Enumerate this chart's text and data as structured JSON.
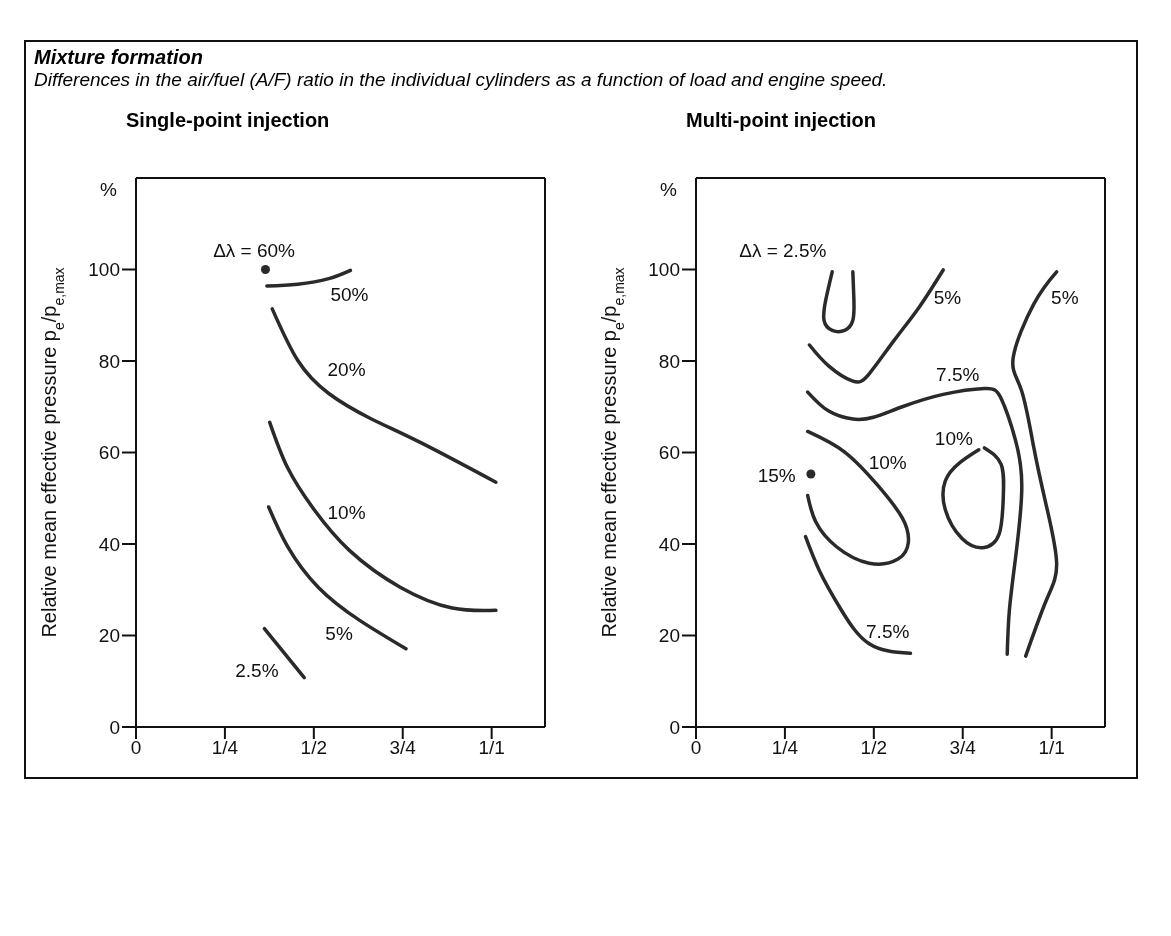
{
  "chart_data": [
    {
      "type": "other",
      "title": "Mixture formation",
      "subtitle": "Differences in the air/fuel (A/F) ratio in the individual cylinders as a function of load and engine speed."
    },
    {
      "type": "line",
      "title": "Single-point injection",
      "ylabel": "Relative mean effective pressure p$_{e}$/p$_{e,max}$",
      "xlim": [
        0,
        1.15
      ],
      "ylim": [
        0,
        120
      ],
      "xticks": [
        0,
        {
          "value": 0.25,
          "label": "1/4"
        },
        {
          "value": 0.5,
          "label": "1/2"
        },
        {
          "value": 0.75,
          "label": "3/4"
        },
        {
          "value": 1,
          "label": "1/1"
        }
      ],
      "yticks": [
        0,
        20,
        40,
        60,
        80,
        100
      ],
      "marker": "none",
      "series": [
        {
          "name": "50%",
          "color": "#2a2a2a",
          "x": [
            0.368,
            0.455,
            0.542,
            0.603
          ],
          "values": [
            96.4,
            96.8,
            98.0,
            99.8
          ]
        },
        {
          "name": "20%",
          "color": "#2a2a2a",
          "x": [
            0.383,
            0.455,
            0.542,
            0.658,
            0.802,
            1.012
          ],
          "values": [
            91.4,
            80.1,
            72.9,
            67.5,
            62.1,
            53.5
          ]
        },
        {
          "name": "10%",
          "color": "#2a2a2a",
          "x": [
            0.376,
            0.426,
            0.499,
            0.6,
            0.744,
            0.889,
            1.012
          ],
          "values": [
            66.6,
            56.7,
            47.7,
            38.6,
            30.5,
            26.0,
            25.5
          ]
        },
        {
          "name": "5%",
          "color": "#2a2a2a",
          "x": [
            0.373,
            0.426,
            0.513,
            0.629,
            0.759
          ],
          "values": [
            48.1,
            39.5,
            30.5,
            23.3,
            17.1
          ]
        },
        {
          "name": "2.5%",
          "color": "#2a2a2a",
          "x": [
            0.361,
            0.473
          ],
          "values": [
            21.5,
            10.8
          ]
        },
        {
          "name": "Δλ = 60%",
          "type": "scatter",
          "marker": "circle",
          "color": "#2a2a2a",
          "x": [
            0.364
          ],
          "values": [
            100
          ]
        }
      ],
      "annotations": [
        "%"
      ]
    },
    {
      "type": "line",
      "title": "Multi-point injection",
      "ylabel": "Relative mean effective pressure p$_{e}$/p$_{e,max}$",
      "xlim": [
        0,
        1.15
      ],
      "ylim": [
        0,
        120
      ],
      "xticks": [
        0,
        {
          "value": 0.25,
          "label": "1/4"
        },
        {
          "value": 0.5,
          "label": "1/2"
        },
        {
          "value": 0.75,
          "label": "3/4"
        },
        {
          "value": 1,
          "label": "1/1"
        }
      ],
      "yticks": [
        0,
        20,
        40,
        60,
        80,
        100
      ],
      "marker": "none",
      "series": [
        {
          "name": "Δλ = 2.5%",
          "color": "#2a2a2a",
          "x": [
            0.383,
            0.365,
            0.36,
            0.383,
            0.418,
            0.441,
            0.444,
            0.441
          ],
          "values": [
            99.5,
            93.4,
            88.9,
            86.7,
            86.7,
            88.9,
            93.4,
            99.5
          ]
        },
        {
          "name": "5%",
          "color": "#2a2a2a",
          "x": [
            0.319,
            0.372,
            0.441,
            0.487,
            0.556,
            0.626,
            0.695,
            null,
            1.014,
            0.95,
            0.892,
            0.915,
            0.95,
            0.985,
            1.014,
            0.985,
            0.927
          ],
          "values": [
            83.5,
            79.0,
            75.6,
            77.2,
            84.4,
            91.6,
            99.9,
            null,
            99.5,
            92.5,
            80.8,
            73.6,
            61.0,
            48.4,
            35.8,
            27.7,
            15.5
          ]
        },
        {
          "name": "7.5%",
          "color": "#2a2a2a",
          "x": [
            0.314,
            0.372,
            0.441,
            0.499,
            0.58,
            0.695,
            0.811,
            0.858,
            0.898,
            0.916,
            0.898,
            0.881,
            0.875,
            null,
            0.308,
            0.348,
            0.406,
            0.487,
            0.603
          ],
          "values": [
            73.2,
            69.1,
            67.3,
            67.7,
            70.0,
            72.7,
            74.0,
            71.8,
            62.8,
            52.0,
            36.7,
            25.4,
            15.9,
            null,
            41.6,
            34.0,
            25.9,
            18.2,
            16.1
          ]
        },
        {
          "name": "10%",
          "color": "#2a2a2a",
          "x": [
            0.314,
            0.418,
            0.51,
            0.58,
            0.597,
            0.568,
            0.487,
            0.395,
            0.337,
            0.314,
            null,
            0.811,
            0.858,
            0.864,
            0.852,
            0.806,
            0.748,
            0.701,
            0.701,
            0.742,
            0.795
          ],
          "values": [
            64.6,
            60.1,
            52.9,
            45.7,
            40.3,
            36.7,
            35.8,
            39.4,
            44.8,
            50.6,
            null,
            61.0,
            57.4,
            50.2,
            42.1,
            39.2,
            41.2,
            47.5,
            53.8,
            57.8,
            60.6
          ]
        },
        {
          "name": "15%",
          "type": "scatter",
          "marker": "circle",
          "color": "#2a2a2a",
          "x": [
            0.323
          ],
          "values": [
            55.3
          ]
        }
      ],
      "annotations": [
        "%"
      ]
    }
  ]
}
